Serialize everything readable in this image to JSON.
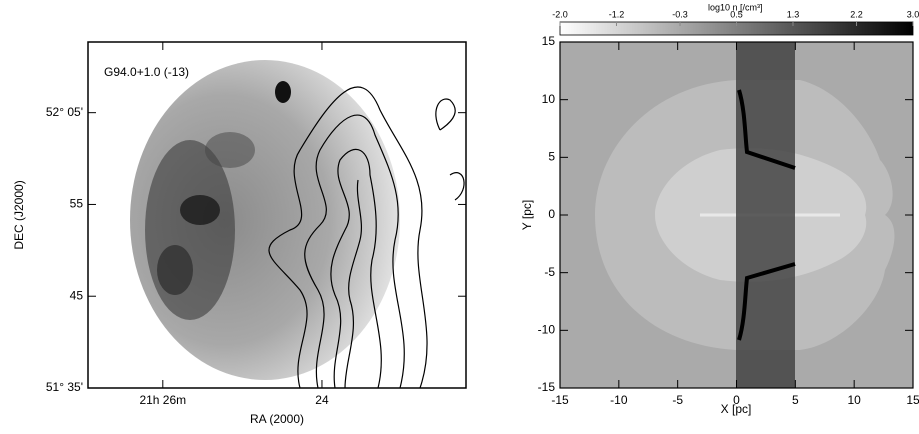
{
  "chart_data": [
    {
      "type": "image",
      "annotation": "G94.0+1.0 (-13)",
      "x_label": "RA (2000)",
      "y_label": "DEC (J2000)",
      "xlim": [
        26.94,
        22.19
      ],
      "ylim": [
        35,
        72.7
      ],
      "xticks": [
        {
          "value": 26,
          "label": "21h 26m"
        },
        24
      ],
      "yticks": [
        {
          "value": 35,
          "label": "51° 35'"
        },
        45,
        55,
        {
          "value": 65,
          "label": "52° 05'"
        }
      ]
    },
    {
      "type": "image",
      "x_label": "X [pc]",
      "y_label": "Y [pc]",
      "xlim": [
        -15,
        15
      ],
      "ylim": [
        -15,
        15
      ],
      "xticks": [
        -15,
        -10,
        -5,
        0,
        5,
        10,
        15
      ],
      "yticks": [
        -15,
        -10,
        -5,
        0,
        5,
        10,
        15
      ],
      "colorbar": {
        "label": "log10 n [/cm³]",
        "lim": [
          -2,
          3
        ],
        "ticks": [
          {
            "value": -2,
            "label": "-2.0"
          },
          -1.2,
          -0.3,
          0.5,
          1.3,
          2.2,
          {
            "value": 3,
            "label": "3.0"
          }
        ]
      }
    }
  ]
}
